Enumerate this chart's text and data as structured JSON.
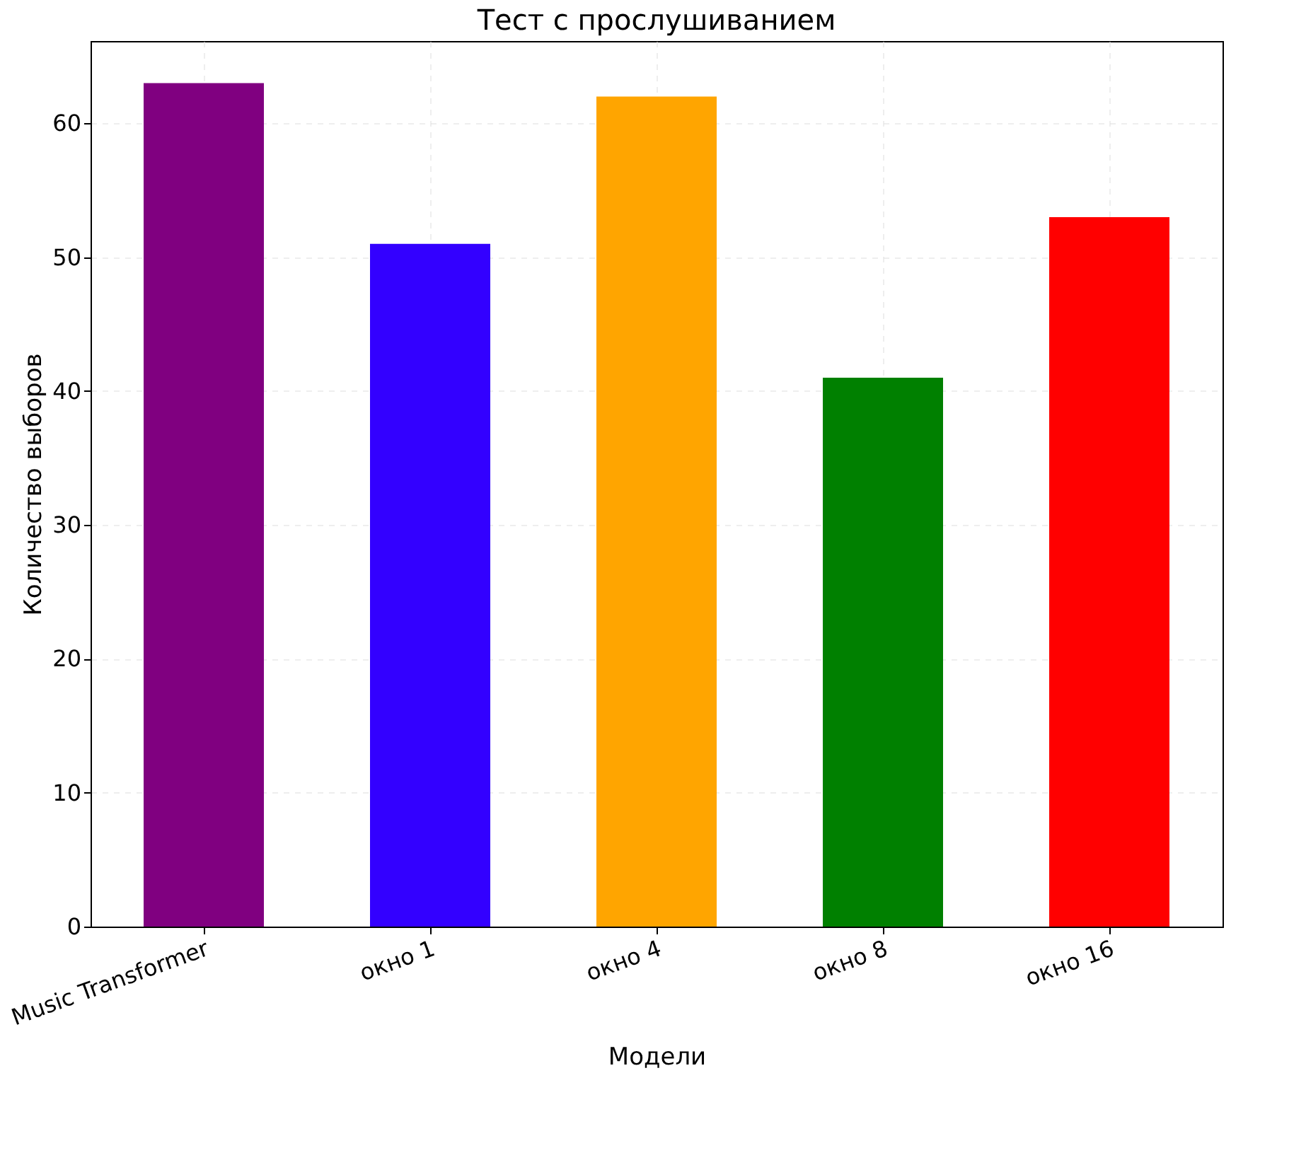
{
  "chart_data": {
    "type": "bar",
    "title": "Тест с прослушиванием",
    "xlabel": "Модели",
    "ylabel": "Количество выборов",
    "categories": [
      "Music Transformer",
      "окно 1",
      "окно 4",
      "окно 8",
      "окно 16"
    ],
    "values": [
      63,
      51,
      62,
      41,
      53
    ],
    "colors": [
      "#800080",
      "#3300ff",
      "#ffa500",
      "#008000",
      "#ff0000"
    ],
    "ylim": [
      0,
      66.15
    ],
    "yticks": [
      0,
      10,
      20,
      30,
      40,
      50,
      60
    ],
    "grid": true
  }
}
